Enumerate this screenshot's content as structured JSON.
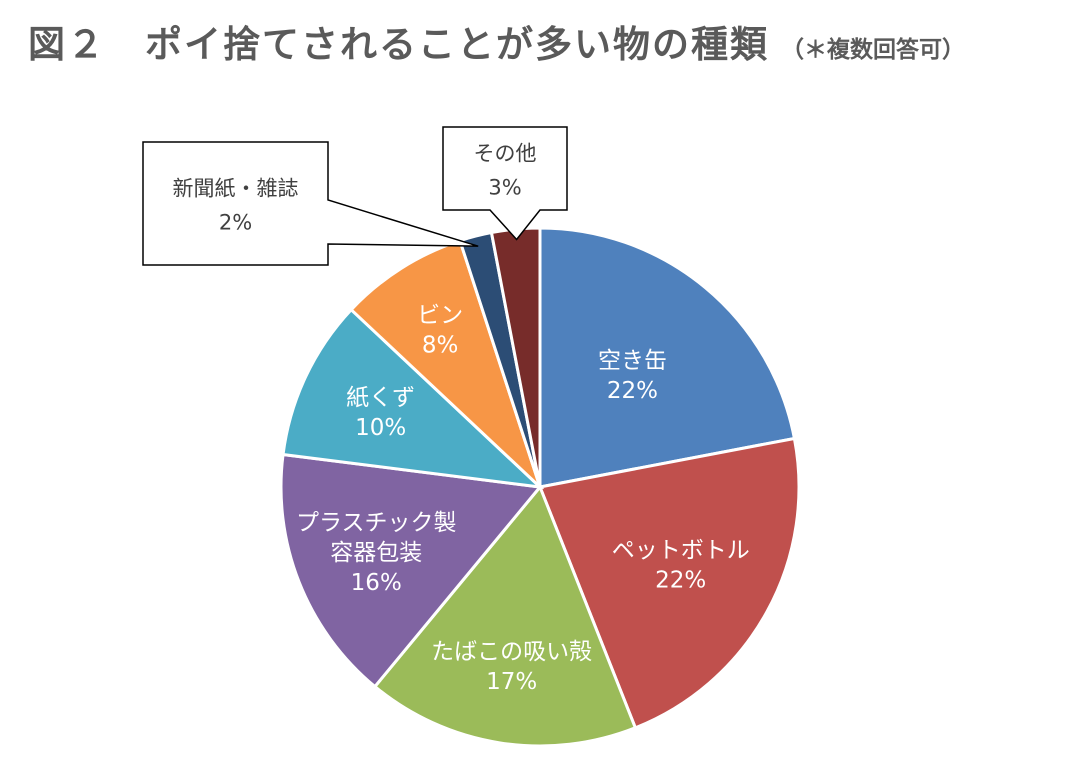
{
  "title": {
    "main": "図２　ポイ捨てされることが多い物の種類",
    "note": "（＊複数回答可）"
  },
  "chart_data": {
    "type": "pie",
    "title": "図２　ポイ捨てされることが多い物の種類（＊複数回答可）",
    "start": "12 o'clock, clockwise",
    "slices": [
      {
        "label": "空き缶",
        "value": 22,
        "value_label": "22%",
        "color": "#4F81BD"
      },
      {
        "label": "ペットボトル",
        "value": 22,
        "value_label": "22%",
        "color": "#C0504D"
      },
      {
        "label": "たばこの吸い殻",
        "value": 17,
        "value_label": "17%",
        "color": "#9BBB59"
      },
      {
        "label": "プラスチック製容器包装",
        "label_lines": [
          "プラスチック製",
          "容器包装"
        ],
        "value": 16,
        "value_label": "16%",
        "color": "#8064A2"
      },
      {
        "label": "紙くず",
        "value": 10,
        "value_label": "10%",
        "color": "#4BACC6"
      },
      {
        "label": "ビン",
        "value": 8,
        "value_label": "8%",
        "color": "#F79646"
      },
      {
        "label": "新聞紙・雑誌",
        "value": 2,
        "value_label": "2%",
        "color": "#2C4D75",
        "callout": true
      },
      {
        "label": "その他",
        "value": 3,
        "value_label": "3%",
        "color": "#772C2A",
        "callout": true
      }
    ]
  }
}
